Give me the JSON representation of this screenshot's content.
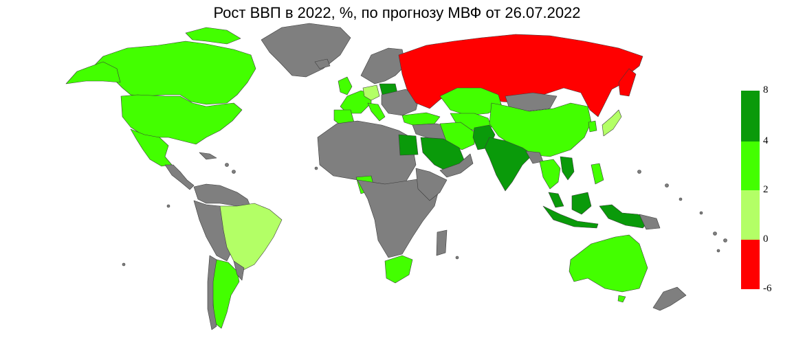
{
  "title": "Рост ВВП в 2022, %, по прогнозу МВФ от 26.07.2022",
  "legend": {
    "ticks": [
      "8",
      "4",
      "2",
      "0",
      "-6"
    ],
    "bins": [
      {
        "from": 4,
        "to": 8,
        "color": "#0a9a0a"
      },
      {
        "from": 2,
        "to": 4,
        "color": "#43ff00"
      },
      {
        "from": 0,
        "to": 2,
        "color": "#b3ff66"
      },
      {
        "from": -6,
        "to": 0,
        "color": "#ff0000"
      }
    ]
  },
  "colors": {
    "no_data": "#7f7f7f",
    "dark_green": "#0a9a0a",
    "green": "#43ff00",
    "light_green": "#b3ff66",
    "red": "#ff0000",
    "border": "#3a3a3a"
  }
}
